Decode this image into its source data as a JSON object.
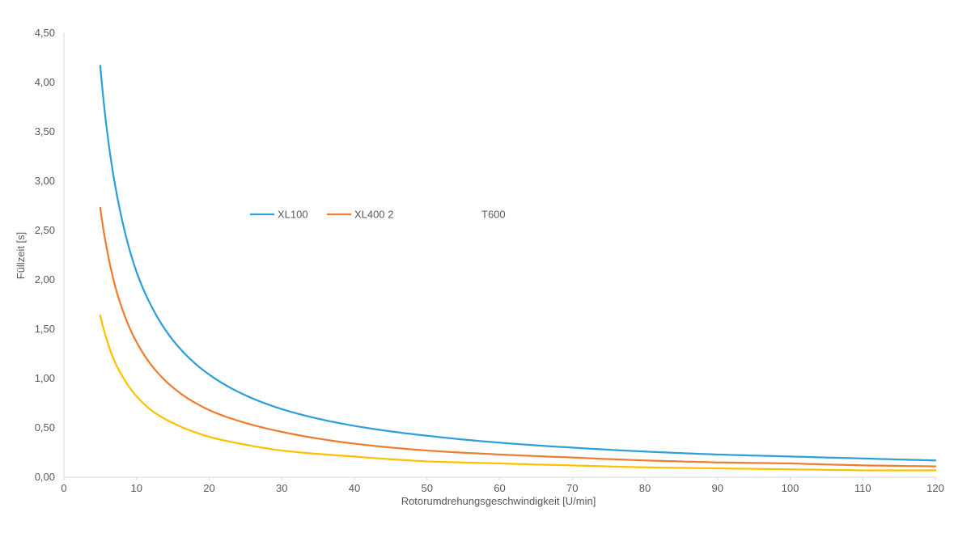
{
  "chart_data": {
    "type": "line",
    "title": "",
    "xlabel": "Rotorumdrehungsgeschwindigkeit  [U/min]",
    "ylabel": "Füllzeit [s]",
    "xlim": [
      0,
      120
    ],
    "ylim": [
      0,
      4.5
    ],
    "x_ticks": [
      "0",
      "10",
      "20",
      "30",
      "40",
      "50",
      "60",
      "70",
      "80",
      "90",
      "100",
      "110",
      "120"
    ],
    "y_ticks": [
      "0,00",
      "0,50",
      "1,00",
      "1,50",
      "2,00",
      "2,50",
      "3,00",
      "3,50",
      "4,00",
      "4,50"
    ],
    "grid": false,
    "legend_position": "top-center",
    "x": [
      5,
      6,
      7,
      8,
      10,
      12,
      15,
      20,
      25,
      30,
      40,
      50,
      60,
      70,
      80,
      90,
      100,
      110,
      120
    ],
    "series": [
      {
        "name": "XL100",
        "color": "#2E9FD8",
        "values": [
          4.17,
          3.47,
          2.98,
          2.61,
          2.08,
          1.74,
          1.39,
          1.04,
          0.83,
          0.69,
          0.52,
          0.42,
          0.35,
          0.3,
          0.26,
          0.23,
          0.21,
          0.19,
          0.17
        ]
      },
      {
        "name": "XL400 2",
        "color": "#ED7D31",
        "values": [
          2.73,
          2.28,
          1.95,
          1.71,
          1.37,
          1.14,
          0.91,
          0.68,
          0.55,
          0.46,
          0.34,
          0.27,
          0.23,
          0.2,
          0.17,
          0.15,
          0.14,
          0.12,
          0.11
        ]
      },
      {
        "name": "T600",
        "color": "#FFC000",
        "values": [
          1.64,
          1.37,
          1.17,
          1.03,
          0.82,
          0.68,
          0.55,
          0.41,
          0.33,
          0.27,
          0.21,
          0.16,
          0.14,
          0.12,
          0.1,
          0.09,
          0.08,
          0.07,
          0.07
        ]
      }
    ]
  }
}
